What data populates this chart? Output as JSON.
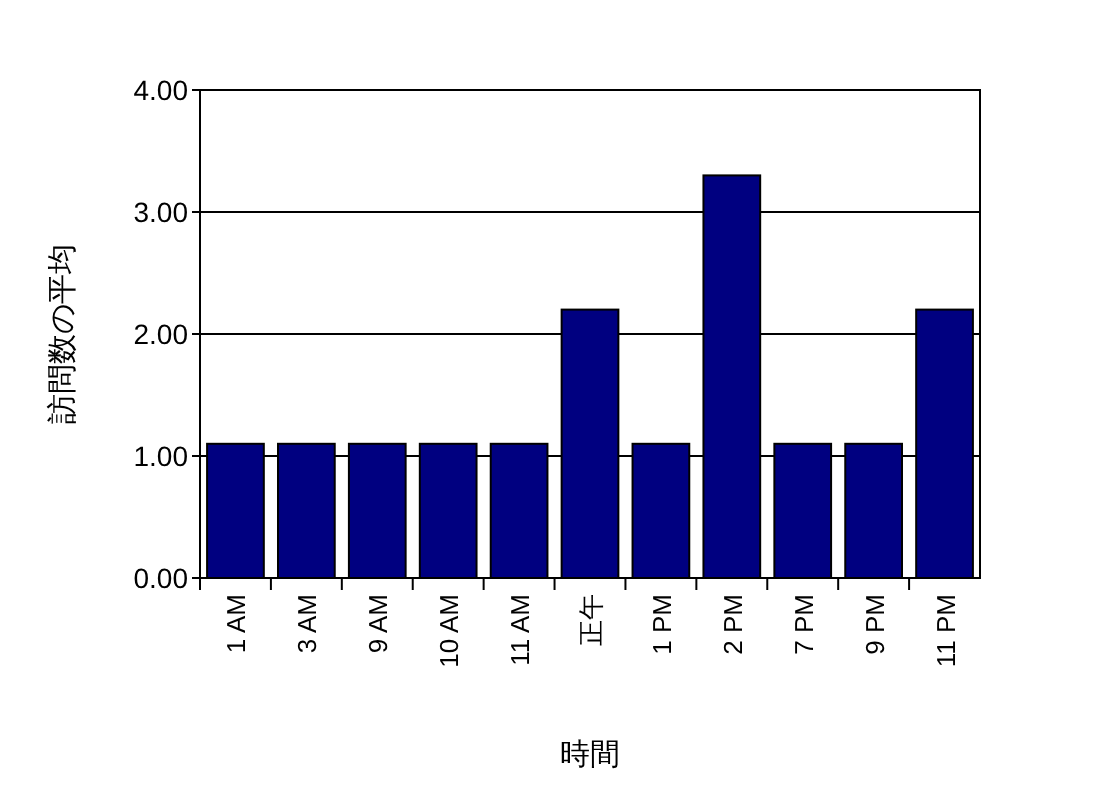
{
  "chart_data": {
    "type": "bar",
    "xlabel": "時間",
    "ylabel": "訪問数の平均",
    "categories": [
      "1 AM",
      "3 AM",
      "9 AM",
      "10 AM",
      "11 AM",
      "正午",
      "1 PM",
      "2 PM",
      "7 PM",
      "9 PM",
      "11 PM"
    ],
    "values": [
      1.1,
      1.1,
      1.1,
      1.1,
      1.1,
      2.2,
      1.1,
      3.3,
      1.1,
      1.1,
      2.2
    ],
    "color": "#000080",
    "ylim": [
      0,
      4
    ],
    "yticks": [
      {
        "value": 0,
        "label": "0.00"
      },
      {
        "value": 1,
        "label": "1.00"
      },
      {
        "value": 2,
        "label": "2.00"
      },
      {
        "value": 3,
        "label": "3.00"
      },
      {
        "value": 4,
        "label": "4.00"
      }
    ],
    "grid": "y"
  }
}
